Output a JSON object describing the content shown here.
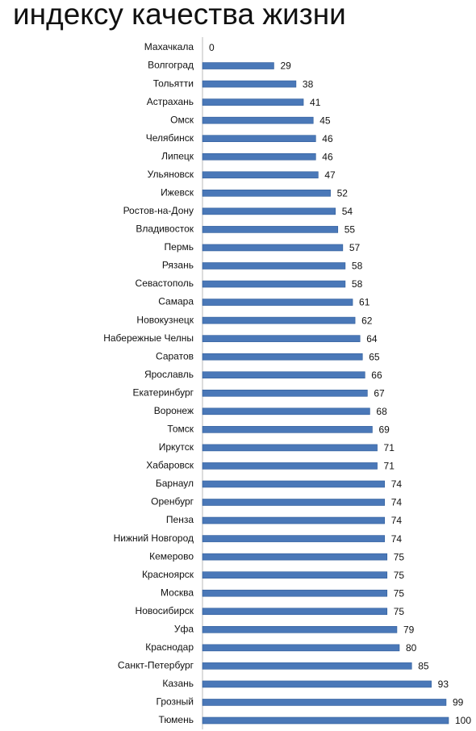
{
  "chart_data": {
    "type": "barh",
    "title": "индексу качества жизни",
    "categories": [
      "Махачкала",
      "Волгоград",
      "Тольятти",
      "Астрахань",
      "Омск",
      "Челябинск",
      "Липецк",
      "Ульяновск",
      "Ижевск",
      "Ростов-на-Дону",
      "Владивосток",
      "Пермь",
      "Рязань",
      "Севастополь",
      "Самара",
      "Новокузнецк",
      "Набережные Челны",
      "Саратов",
      "Ярославль",
      "Екатеринбург",
      "Воронеж",
      "Томск",
      "Иркутск",
      "Хабаровск",
      "Барнаул",
      "Оренбург",
      "Пенза",
      "Нижний Новгород",
      "Кемерово",
      "Красноярск",
      "Москва",
      "Новосибирск",
      "Уфа",
      "Краснодар",
      "Санкт-Петербург",
      "Казань",
      "Грозный",
      "Тюмень"
    ],
    "values": [
      0,
      29,
      38,
      41,
      45,
      46,
      46,
      47,
      52,
      54,
      55,
      57,
      58,
      58,
      61,
      62,
      64,
      65,
      66,
      67,
      68,
      69,
      71,
      71,
      74,
      74,
      74,
      74,
      75,
      75,
      75,
      75,
      79,
      80,
      85,
      93,
      99,
      100
    ],
    "color": "#4a78b8",
    "xlim": [
      0,
      100
    ]
  }
}
